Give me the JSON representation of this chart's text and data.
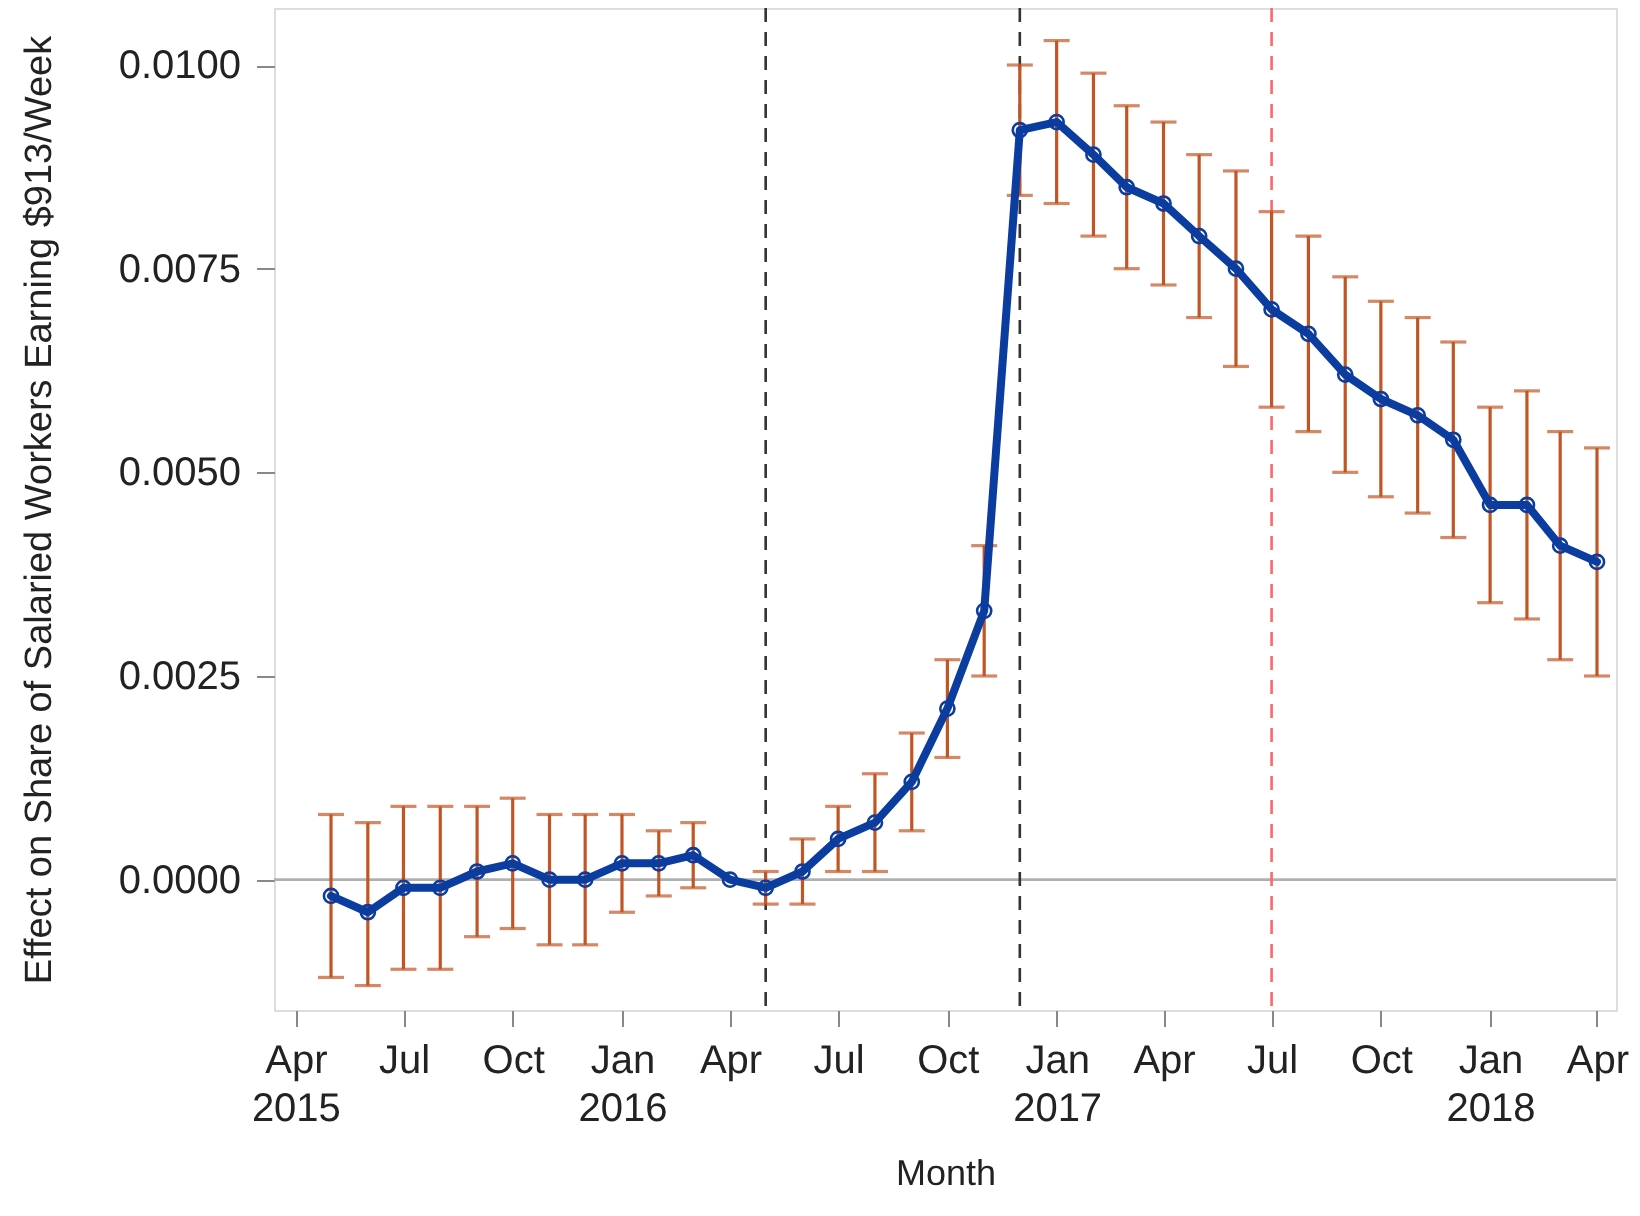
{
  "chart_data": {
    "type": "line",
    "xlabel": "Month",
    "ylabel": "Effect on Share of Salaried Workers Earning $913/Week",
    "x": [
      "2015-05",
      "2015-06",
      "2015-07",
      "2015-08",
      "2015-09",
      "2015-10",
      "2015-11",
      "2015-12",
      "2016-01",
      "2016-02",
      "2016-03",
      "2016-04",
      "2016-05",
      "2016-06",
      "2016-07",
      "2016-08",
      "2016-09",
      "2016-10",
      "2016-11",
      "2016-12",
      "2017-01",
      "2017-02",
      "2017-03",
      "2017-04",
      "2017-05",
      "2017-06",
      "2017-07",
      "2017-08",
      "2017-09",
      "2017-10",
      "2017-11",
      "2017-12",
      "2018-01",
      "2018-02",
      "2018-03",
      "2018-04"
    ],
    "series": [
      {
        "color": "#0b3c9f",
        "values": [
          -0.0002,
          -0.0004,
          -0.0001,
          -0.0001,
          0.0001,
          0.0002,
          0.0,
          0.0,
          0.0002,
          0.0002,
          0.0003,
          0.0,
          -0.0001,
          0.0001,
          0.0005,
          0.0007,
          0.0012,
          0.0021,
          0.0033,
          0.0092,
          0.0093,
          0.0089,
          0.0085,
          0.0083,
          0.0079,
          0.0075,
          0.007,
          0.0067,
          0.0062,
          0.0059,
          0.0057,
          0.0054,
          0.0046,
          0.0046,
          0.0041,
          0.0039
        ],
        "errors": [
          [
            -0.0012,
            0.0008
          ],
          [
            -0.0013,
            0.0007
          ],
          [
            -0.0011,
            0.0009
          ],
          [
            -0.0011,
            0.0009
          ],
          [
            -0.0007,
            0.0009
          ],
          [
            -0.0006,
            0.001
          ],
          [
            -0.0008,
            0.0008
          ],
          [
            -0.0008,
            0.0008
          ],
          [
            -0.0004,
            0.0008
          ],
          [
            -0.0002,
            0.0006
          ],
          [
            -0.0001,
            0.0007
          ],
          null,
          [
            -0.0003,
            0.0001
          ],
          [
            -0.0003,
            0.0005
          ],
          [
            0.0001,
            0.0009
          ],
          [
            0.0001,
            0.0013
          ],
          [
            0.0006,
            0.0018
          ],
          [
            0.0015,
            0.0027
          ],
          [
            0.0025,
            0.0041
          ],
          [
            0.0084,
            0.01
          ],
          [
            0.0083,
            0.0103
          ],
          [
            0.0079,
            0.0099
          ],
          [
            0.0075,
            0.0095
          ],
          [
            0.0073,
            0.0093
          ],
          [
            0.0069,
            0.0089
          ],
          [
            0.0063,
            0.0087
          ],
          [
            0.0058,
            0.0082
          ],
          [
            0.0055,
            0.0079
          ],
          [
            0.005,
            0.0074
          ],
          [
            0.0047,
            0.0071
          ],
          [
            0.0045,
            0.0069
          ],
          [
            0.0042,
            0.0066
          ],
          [
            0.0034,
            0.0058
          ],
          [
            0.0032,
            0.006
          ],
          [
            0.0027,
            0.0055
          ],
          [
            0.0025,
            0.0053
          ]
        ]
      }
    ],
    "xlim": [
      "2015-03-14",
      "2018-04-17"
    ],
    "ylim": [
      -0.0016,
      0.0107
    ],
    "xticks": [
      {
        "value": "2015-04",
        "label": "Apr 2015"
      },
      {
        "value": "2015-07",
        "label": "Jul"
      },
      {
        "value": "2015-10",
        "label": "Oct"
      },
      {
        "value": "2016-01",
        "label": "Jan 2016"
      },
      {
        "value": "2016-04",
        "label": "Apr"
      },
      {
        "value": "2016-07",
        "label": "Jul"
      },
      {
        "value": "2016-10",
        "label": "Oct"
      },
      {
        "value": "2017-01",
        "label": "Jan 2017"
      },
      {
        "value": "2017-04",
        "label": "Apr"
      },
      {
        "value": "2017-07",
        "label": "Jul"
      },
      {
        "value": "2017-10",
        "label": "Oct"
      },
      {
        "value": "2018-01",
        "label": "Jan 2018"
      },
      {
        "value": "2018-04",
        "label": "Apr"
      }
    ],
    "yticks": [
      {
        "value": 0,
        "label": "0.0000"
      },
      {
        "value": 0.0025,
        "label": "0.0025"
      },
      {
        "value": 0.005,
        "label": "0.0050"
      },
      {
        "value": 0.0075,
        "label": "0.0075"
      },
      {
        "value": 0.01,
        "label": "0.0100"
      }
    ],
    "ref_lines": [
      {
        "axis": "y",
        "value": 0,
        "color": "#b0b0b0",
        "line_style": "solid"
      },
      {
        "axis": "x",
        "value": "2016-05",
        "color": "#333333",
        "line_style": "dashed"
      },
      {
        "axis": "x",
        "value": "2016-12",
        "color": "#333333",
        "line_style": "dashed"
      },
      {
        "axis": "x",
        "value": "2017-07",
        "color": "#ff6666",
        "line_style": "dashed"
      }
    ],
    "grid": false,
    "marker": "circle",
    "line_style": "solid"
  }
}
